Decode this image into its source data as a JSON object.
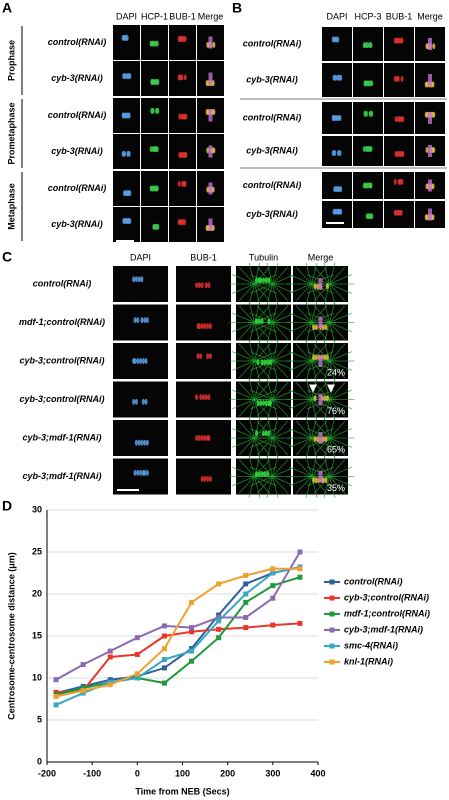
{
  "panel_a": {
    "label": "A",
    "columns": [
      "DAPI",
      "HCP-1",
      "BUB-1",
      "Merge"
    ],
    "stages": [
      "Prophase",
      "Prometaphase",
      "Metaphase"
    ],
    "rows": [
      "control(RNAi)",
      "cyb-3(RNAi)",
      "control(RNAi)",
      "cyb-3(RNAi)",
      "control(RNAi)",
      "cyb-3(RNAi)"
    ]
  },
  "panel_b": {
    "label": "B",
    "columns": [
      "DAPI",
      "HCP-3",
      "BUB-1",
      "Merge"
    ],
    "rows": [
      "control(RNAi)",
      "cyb-3(RNAi)",
      "control(RNAi)",
      "cyb-3(RNAi)",
      "control(RNAi)",
      "cyb-3(RNAi)"
    ]
  },
  "panel_c": {
    "label": "C",
    "columns": [
      "DAPI",
      "BUB-1",
      "Tubulin",
      "Merge"
    ],
    "rows": [
      "control(RNAi)",
      "mdf-1;control(RNAi)",
      "cyb-3;control(RNAi)",
      "cyb-3;control(RNAi)",
      "cyb-3;mdf-1(RNAi)",
      "cyb-3;mdf-1(RNAi)"
    ],
    "percentages": [
      null,
      null,
      "24%",
      "76%",
      "65%",
      "35%"
    ]
  },
  "chart_data": {
    "type": "line",
    "panel_label": "D",
    "x_label": "Time from NEB (Secs)",
    "y_label": "Centrosome-centrosome distance (μm)",
    "x": [
      -180,
      -120,
      -60,
      0,
      60,
      120,
      180,
      240,
      300,
      360
    ],
    "xlim": [
      -200,
      400
    ],
    "xticks": [
      -200,
      -100,
      0,
      100,
      200,
      300,
      400
    ],
    "ylim": [
      0,
      30
    ],
    "yticks": [
      0,
      5,
      10,
      15,
      20,
      25,
      30
    ],
    "grid": true,
    "legend": "right",
    "series": [
      {
        "name": "control(RNAi)",
        "color": "#2f5fa0",
        "values": [
          8.2,
          9.0,
          9.8,
          10.2,
          11.2,
          13.5,
          17.5,
          21.2,
          22.5,
          23.2
        ]
      },
      {
        "name": "cyb-3;control(RNAi)",
        "color": "#e8382a",
        "values": [
          8.3,
          8.5,
          12.5,
          12.8,
          15.0,
          15.5,
          15.8,
          16.0,
          16.3,
          16.5
        ]
      },
      {
        "name": "mdf-1;control(RNAi)",
        "color": "#1f9a3a",
        "values": [
          8.0,
          8.8,
          9.5,
          10.0,
          9.4,
          12.0,
          14.8,
          19.0,
          21.0,
          22.0
        ]
      },
      {
        "name": "cyb-3;mdf-1(RNAi)",
        "color": "#8a6bb0",
        "values": [
          9.8,
          11.6,
          13.2,
          14.8,
          16.2,
          16.0,
          17.2,
          17.2,
          19.5,
          25.0
        ]
      },
      {
        "name": "smc-4(RNAi)",
        "color": "#3aa8c1",
        "values": [
          6.8,
          8.2,
          9.5,
          10.0,
          12.2,
          13.2,
          16.8,
          20.0,
          22.5,
          23.2
        ]
      },
      {
        "name": "knl-1(RNAi)",
        "color": "#f0a030",
        "values": [
          7.8,
          8.5,
          9.2,
          10.5,
          13.5,
          19.0,
          21.2,
          22.2,
          23.0,
          23.0
        ]
      }
    ]
  }
}
